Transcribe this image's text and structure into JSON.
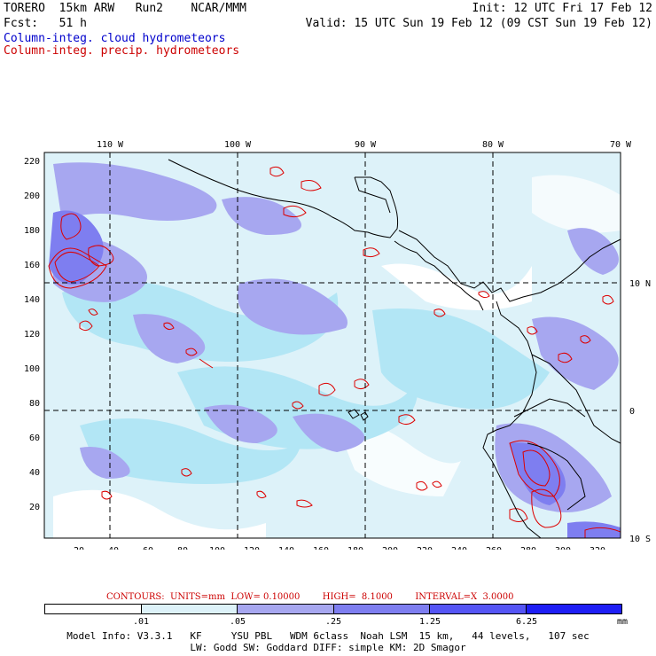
{
  "header": {
    "line1_left": "TORERO  15km ARW   Run2    NCAR/MMM",
    "line1_right": "Init: 12 UTC Fri 17 Feb 12",
    "line2_left": "Fcst:   51 h",
    "line2_right": "Valid: 15 UTC Sun 19 Feb 12 (09 CST Sun 19 Feb 12)",
    "line3": "Column-integ. cloud hydrometeors",
    "line4": "Column-integ. precip. hydrometeors"
  },
  "colors": {
    "cloud_level1": "#ddf2f9",
    "cloud_level2": "#b2e6f5",
    "cloud_level3": "#a7a7f0",
    "cloud_level4": "#7e7ef0",
    "cloud_level5": "#5555f5",
    "cloud_level6": "#1e1ef5",
    "contour": "#dd0000"
  },
  "axes": {
    "top_lon_labels": [
      "110 W",
      "100 W",
      "90 W",
      "80 W",
      "70 W"
    ],
    "right_lat_labels": [
      "10 N",
      "0",
      "10 S"
    ],
    "left_labels": [
      "220",
      "200",
      "180",
      "160",
      "140",
      "120",
      "100",
      "80",
      "60",
      "40",
      "20"
    ],
    "bottom_labels": [
      "20",
      "40",
      "60",
      "80",
      "100",
      "120",
      "140",
      "160",
      "180",
      "200",
      "220",
      "240",
      "260",
      "280",
      "300",
      "320"
    ]
  },
  "contours_info": {
    "text": "CONTOURS:  UNITS=mm  LOW= 0.10000        HIGH=  8.1000        INTERVAL=X  3.0000"
  },
  "legend": {
    "labels": [
      ".01",
      ".05",
      ".25",
      "1.25",
      "6.25"
    ],
    "unit": "mm"
  },
  "footer": {
    "line1": "Model Info: V3.3.1   KF     YSU PBL   WDM 6class  Noah LSM  15 km,   44 levels,   107 sec",
    "line2": "LW: Godd SW: Goddard DIFF: simple KM: 2D Smagor"
  }
}
